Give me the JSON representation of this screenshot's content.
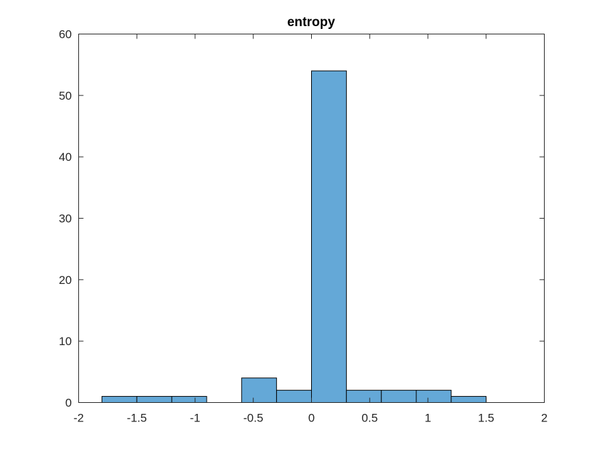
{
  "chart_data": {
    "type": "bar",
    "title": "entropy",
    "xlabel": "",
    "ylabel": "",
    "xlim": [
      -2,
      2
    ],
    "ylim": [
      0,
      60
    ],
    "xticks": [
      -2,
      -1.5,
      -1,
      -0.5,
      0,
      0.5,
      1,
      1.5,
      2
    ],
    "xtick_labels": [
      "-2",
      "-1.5",
      "-1",
      "-0.5",
      "0",
      "0.5",
      "1",
      "1.5",
      "2"
    ],
    "yticks": [
      0,
      10,
      20,
      30,
      40,
      50,
      60
    ],
    "ytick_labels": [
      "0",
      "10",
      "20",
      "30",
      "40",
      "50",
      "60"
    ],
    "bin_edges": [
      -1.8,
      -1.5,
      -1.2,
      -0.9,
      -0.6,
      -0.3,
      0,
      0.3,
      0.6,
      0.9,
      1.2,
      1.5
    ],
    "counts": [
      1,
      1,
      1,
      0,
      4,
      2,
      54,
      2,
      2,
      2,
      1
    ],
    "bar_color": "#64a8d7",
    "edge_color": "#000000",
    "grid": false
  }
}
